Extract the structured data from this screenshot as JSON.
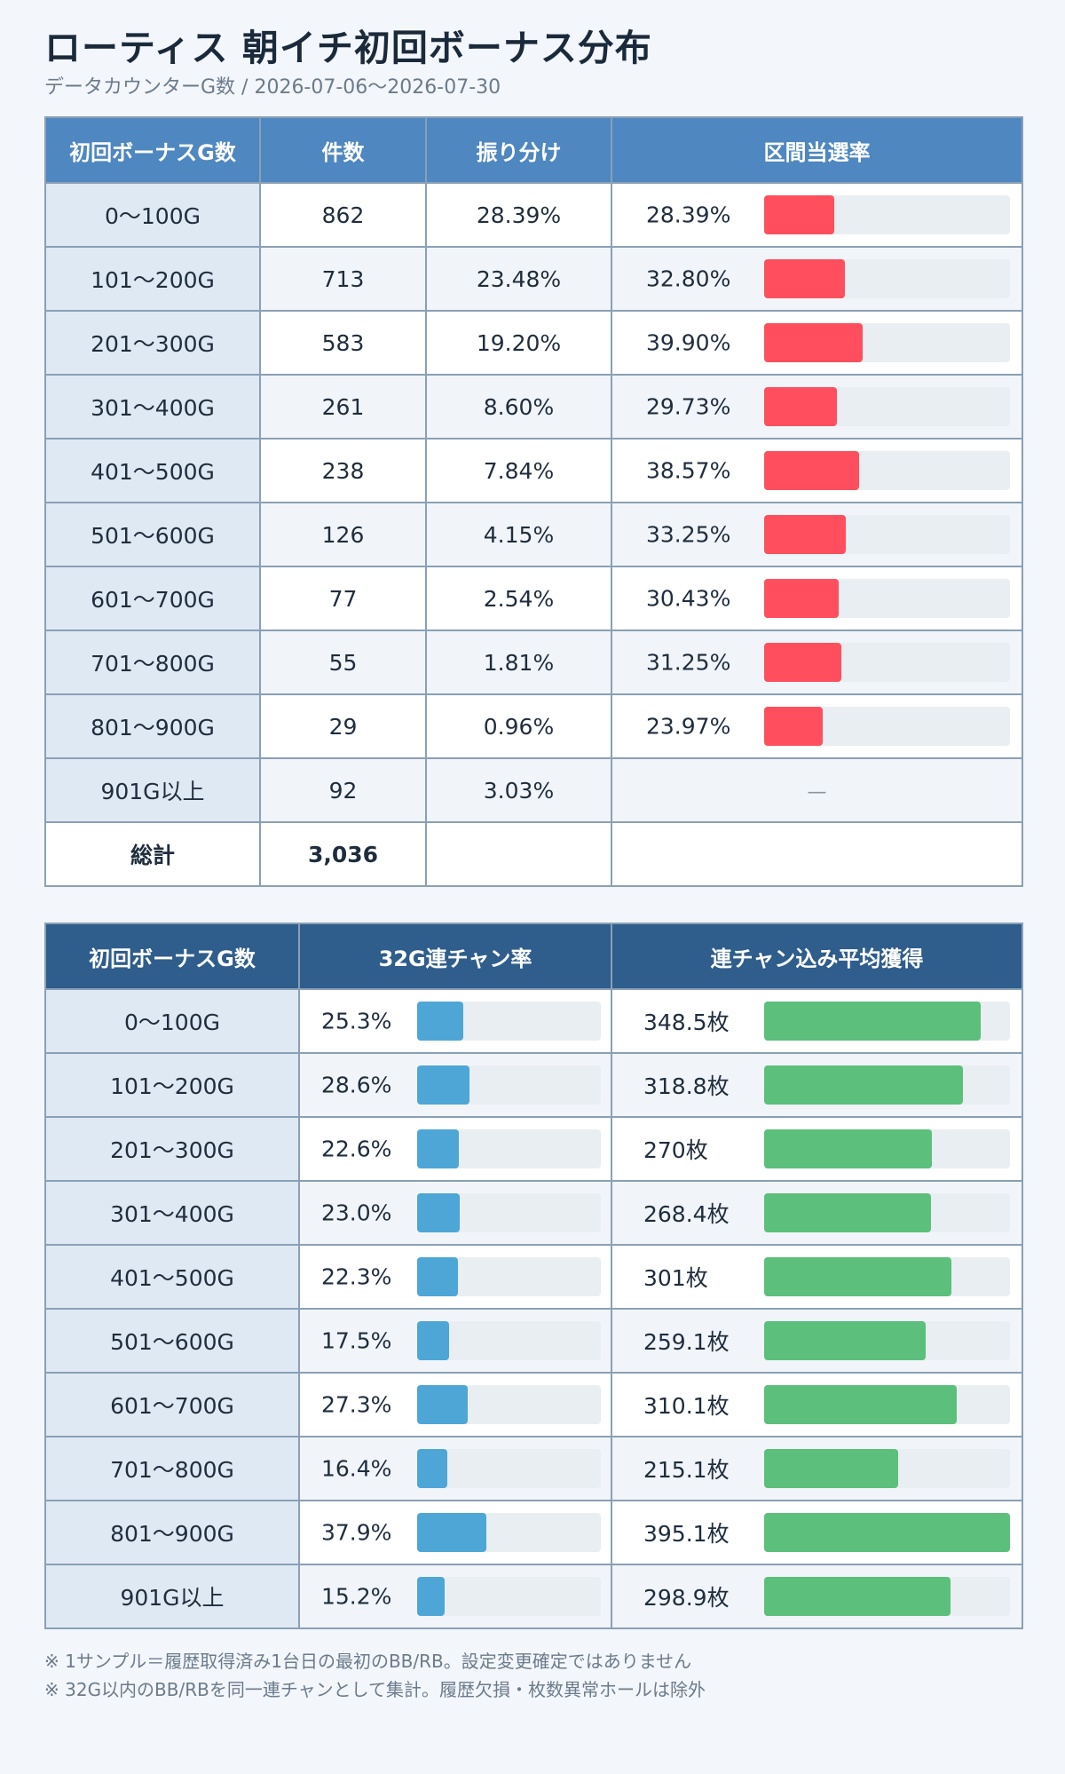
{
  "title": "ローティス 朝イチ初回ボーナス分布",
  "subtitle": "データカウンターG数 / 2026-07-06〜2026-07-30",
  "table1": {
    "headers": [
      "初回ボーナスG数",
      "件数",
      "振り分け",
      "区間当選率"
    ],
    "rows": [
      {
        "range": "0〜100G",
        "count": "862",
        "share": "28.39%",
        "rate": "28.39%",
        "rate_value": 28.39
      },
      {
        "range": "101〜200G",
        "count": "713",
        "share": "23.48%",
        "rate": "32.80%",
        "rate_value": 32.8
      },
      {
        "range": "201〜300G",
        "count": "583",
        "share": "19.20%",
        "rate": "39.90%",
        "rate_value": 39.9
      },
      {
        "range": "301〜400G",
        "count": "261",
        "share": "8.60%",
        "rate": "29.73%",
        "rate_value": 29.73
      },
      {
        "range": "401〜500G",
        "count": "238",
        "share": "7.84%",
        "rate": "38.57%",
        "rate_value": 38.57
      },
      {
        "range": "501〜600G",
        "count": "126",
        "share": "4.15%",
        "rate": "33.25%",
        "rate_value": 33.25
      },
      {
        "range": "601〜700G",
        "count": "77",
        "share": "2.54%",
        "rate": "30.43%",
        "rate_value": 30.43
      },
      {
        "range": "701〜800G",
        "count": "55",
        "share": "1.81%",
        "rate": "31.25%",
        "rate_value": 31.25
      },
      {
        "range": "801〜900G",
        "count": "29",
        "share": "0.96%",
        "rate": "23.97%",
        "rate_value": 23.97
      },
      {
        "range": "901G以上",
        "count": "92",
        "share": "3.03%",
        "rate": "—",
        "rate_value": null
      }
    ],
    "total_label": "総計",
    "total_count": "3,036",
    "rate_bar_max": 100
  },
  "table2": {
    "headers": [
      "初回ボーナスG数",
      "32G連チャン率",
      "連チャン込み平均獲得"
    ],
    "rows": [
      {
        "range": "0〜100G",
        "renchan": "25.3%",
        "renchan_value": 25.3,
        "avg": "348.5枚",
        "avg_value": 348.5
      },
      {
        "range": "101〜200G",
        "renchan": "28.6%",
        "renchan_value": 28.6,
        "avg": "318.8枚",
        "avg_value": 318.8
      },
      {
        "range": "201〜300G",
        "renchan": "22.6%",
        "renchan_value": 22.6,
        "avg": "270枚",
        "avg_value": 270
      },
      {
        "range": "301〜400G",
        "renchan": "23.0%",
        "renchan_value": 23.0,
        "avg": "268.4枚",
        "avg_value": 268.4
      },
      {
        "range": "401〜500G",
        "renchan": "22.3%",
        "renchan_value": 22.3,
        "avg": "301枚",
        "avg_value": 301
      },
      {
        "range": "501〜600G",
        "renchan": "17.5%",
        "renchan_value": 17.5,
        "avg": "259.1枚",
        "avg_value": 259.1
      },
      {
        "range": "601〜700G",
        "renchan": "27.3%",
        "renchan_value": 27.3,
        "avg": "310.1枚",
        "avg_value": 310.1
      },
      {
        "range": "701〜800G",
        "renchan": "16.4%",
        "renchan_value": 16.4,
        "avg": "215.1枚",
        "avg_value": 215.1
      },
      {
        "range": "801〜900G",
        "renchan": "37.9%",
        "renchan_value": 37.9,
        "avg": "395.1枚",
        "avg_value": 395.1
      },
      {
        "range": "901G以上",
        "renchan": "15.2%",
        "renchan_value": 15.2,
        "avg": "298.9枚",
        "avg_value": 298.9
      }
    ],
    "renchan_bar_max": 100,
    "avg_bar_max": 395.1
  },
  "footnotes": [
    "※ 1サンプル＝履歴取得済み1台日の最初のBB/RB。設定変更確定ではありません",
    "※ 32G以内のBB/RBを同一連チャンとして集計。履歴欠損・枚数異常ホールは除外"
  ],
  "colors": {
    "header1": "#4f87c0",
    "header2": "#2f5d8c",
    "rate_bar": "#ff4f5e",
    "renchan_bar": "#4ea6d6",
    "avg_bar": "#5cbf7b"
  }
}
